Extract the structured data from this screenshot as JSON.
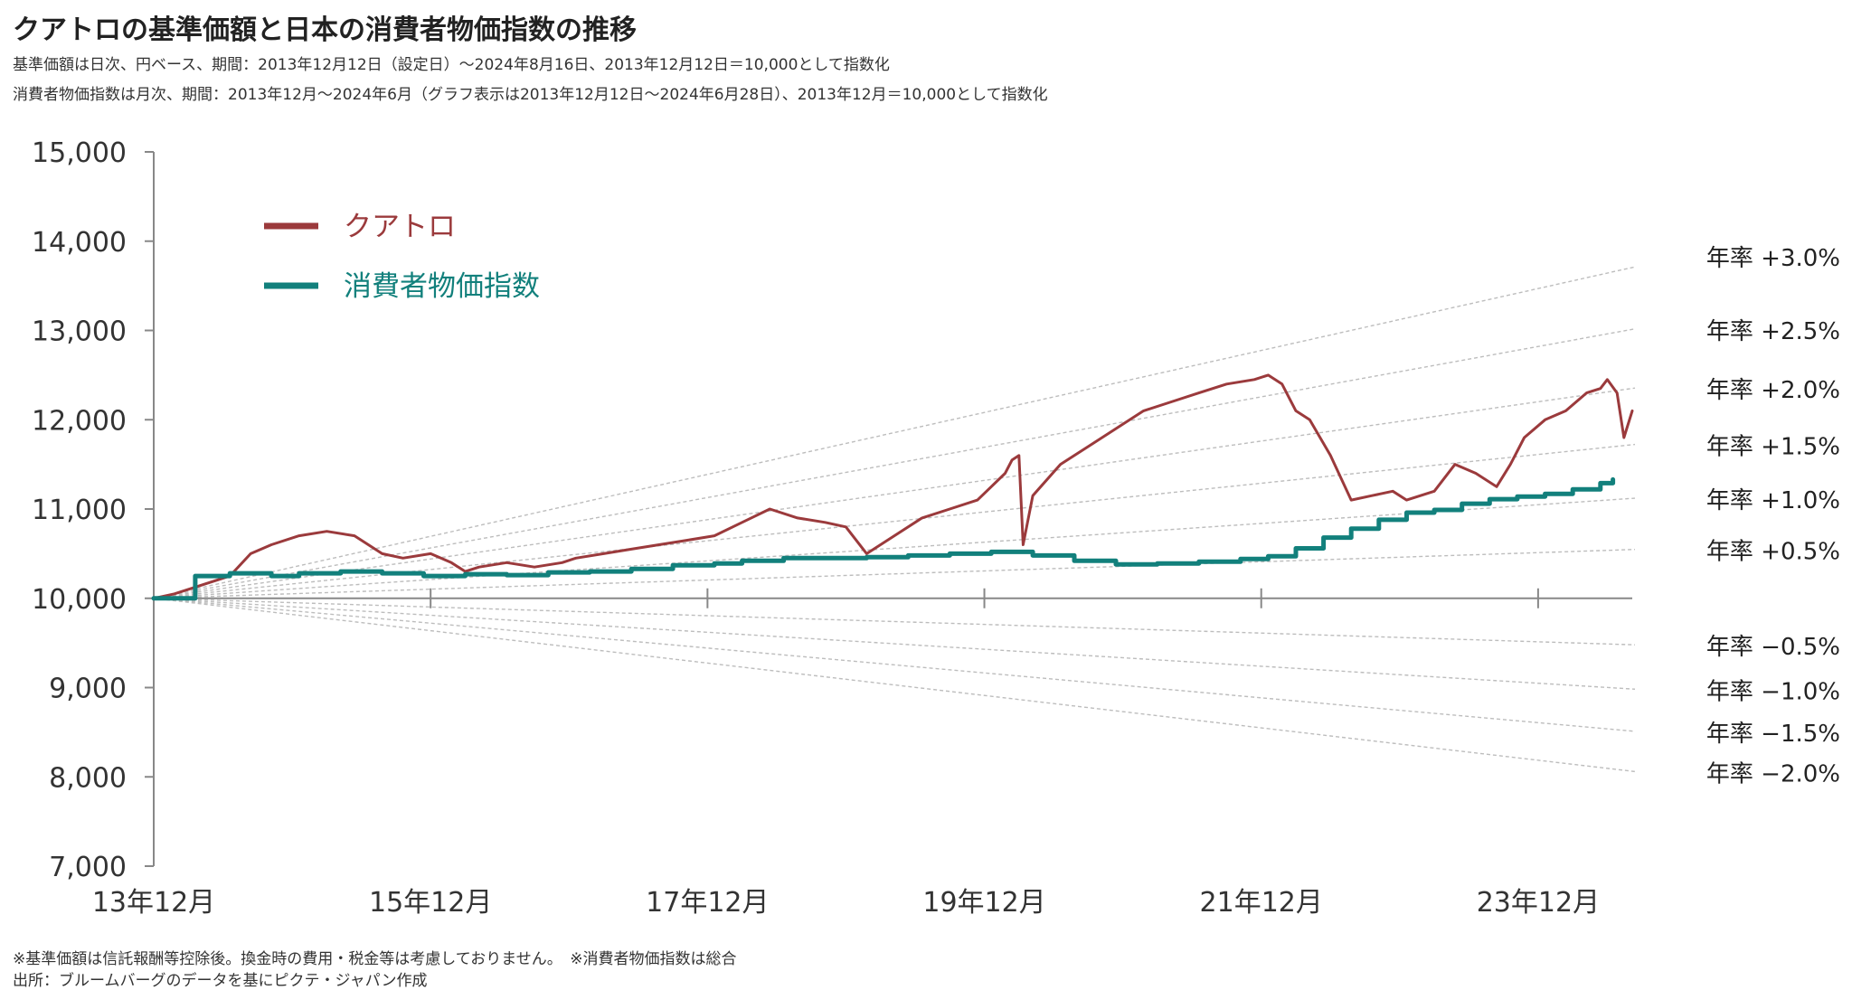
{
  "title": "クアトロの基準価額と日本の消費者物価指数の推移",
  "subtitle_lines": [
    "基準価額は日次、円ベース、期間：2013年12月12日（設定日）～2024年8月16日、2013年12月12日＝10,000として指数化",
    "消費者物価指数は月次、期間：2013年12月～2024年6月（グラフ表示は2013年12月12日～2024年6月28日）、2013年12月＝10,000として指数化"
  ],
  "footnotes": [
    "※基準価額は信託報酬等控除後。換金時の費用・税金等は考慮しておりません。　※消費者物価指数は総合",
    "出所：ブルームバーグのデータを基にピクテ・ジャパン作成"
  ],
  "chart_data": {
    "type": "line",
    "ylim": [
      7000,
      15000
    ],
    "xlim": [
      2013.95,
      2024.63
    ],
    "y_ticks": [
      {
        "value": 7000,
        "label": "7,000"
      },
      {
        "value": 8000,
        "label": "8,000"
      },
      {
        "value": 9000,
        "label": "9,000"
      },
      {
        "value": 10000,
        "label": "10,000"
      },
      {
        "value": 11000,
        "label": "11,000"
      },
      {
        "value": 12000,
        "label": "12,000"
      },
      {
        "value": 13000,
        "label": "13,000"
      },
      {
        "value": 14000,
        "label": "14,000"
      },
      {
        "value": 15000,
        "label": "15,000"
      }
    ],
    "x_ticks": [
      {
        "value": 2013.95,
        "label": "13年12月"
      },
      {
        "value": 2015.95,
        "label": "15年12月"
      },
      {
        "value": 2017.95,
        "label": "17年12月"
      },
      {
        "value": 2019.95,
        "label": "19年12月"
      },
      {
        "value": 2021.95,
        "label": "21年12月"
      },
      {
        "value": 2023.95,
        "label": "23年12月"
      }
    ],
    "legend": [
      {
        "name": "クアトロ",
        "color": "#9b3a3c"
      },
      {
        "name": "消費者物価指数",
        "color": "#12807c"
      }
    ],
    "legend_placement": "top-left",
    "grid": false,
    "reference_lines": [
      {
        "rate": 3.0,
        "label": "年率 +3.0%"
      },
      {
        "rate": 2.5,
        "label": "年率 +2.5%"
      },
      {
        "rate": 2.0,
        "label": "年率 +2.0%"
      },
      {
        "rate": 1.5,
        "label": "年率 +1.5%"
      },
      {
        "rate": 1.0,
        "label": "年率 +1.0%"
      },
      {
        "rate": 0.5,
        "label": "年率 +0.5%"
      },
      {
        "rate": -0.5,
        "label": "年率 −0.5%"
      },
      {
        "rate": -1.0,
        "label": "年率 −1.0%"
      },
      {
        "rate": -1.5,
        "label": "年率 −1.5%"
      },
      {
        "rate": -2.0,
        "label": "年率 −2.0%"
      }
    ],
    "reference_line_color": "#bdbdbd",
    "series": [
      {
        "name": "クアトロ",
        "color": "#9b3a3c",
        "x": [
          2013.95,
          2014.1,
          2014.3,
          2014.5,
          2014.65,
          2014.8,
          2015.0,
          2015.2,
          2015.4,
          2015.6,
          2015.75,
          2015.95,
          2016.1,
          2016.2,
          2016.3,
          2016.5,
          2016.7,
          2016.9,
          2017.0,
          2017.2,
          2017.4,
          2017.6,
          2017.8,
          2018.0,
          2018.2,
          2018.4,
          2018.6,
          2018.8,
          2018.95,
          2019.1,
          2019.3,
          2019.5,
          2019.7,
          2019.9,
          2020.0,
          2020.1,
          2020.15,
          2020.2,
          2020.23,
          2020.3,
          2020.5,
          2020.7,
          2020.9,
          2021.1,
          2021.3,
          2021.5,
          2021.7,
          2021.9,
          2022.0,
          2022.1,
          2022.2,
          2022.3,
          2022.45,
          2022.6,
          2022.75,
          2022.9,
          2023.0,
          2023.1,
          2023.2,
          2023.35,
          2023.5,
          2023.65,
          2023.75,
          2023.85,
          2024.0,
          2024.15,
          2024.3,
          2024.4,
          2024.45,
          2024.52,
          2024.57,
          2024.63
        ],
        "values": [
          10000,
          10050,
          10150,
          10250,
          10500,
          10600,
          10700,
          10750,
          10700,
          10500,
          10450,
          10500,
          10400,
          10300,
          10350,
          10400,
          10350,
          10400,
          10450,
          10500,
          10550,
          10600,
          10650,
          10700,
          10850,
          11000,
          10900,
          10850,
          10800,
          10500,
          10700,
          10900,
          11000,
          11100,
          11250,
          11400,
          11550,
          11600,
          10600,
          11150,
          11500,
          11700,
          11900,
          12100,
          12200,
          12300,
          12400,
          12450,
          12500,
          12400,
          12100,
          12000,
          11600,
          11100,
          11150,
          11200,
          11100,
          11150,
          11200,
          11500,
          11400,
          11250,
          11500,
          11800,
          12000,
          12100,
          12300,
          12350,
          12450,
          12300,
          11800,
          12100
        ]
      },
      {
        "name": "消費者物価指数",
        "color": "#12807c",
        "x": [
          2013.95,
          2014.2,
          2014.25,
          2014.5,
          2014.8,
          2015.0,
          2015.3,
          2015.6,
          2015.9,
          2016.2,
          2016.5,
          2016.8,
          2017.1,
          2017.4,
          2017.7,
          2018.0,
          2018.2,
          2018.5,
          2018.8,
          2019.1,
          2019.4,
          2019.7,
          2020.0,
          2020.3,
          2020.6,
          2020.9,
          2021.2,
          2021.5,
          2021.8,
          2022.0,
          2022.2,
          2022.4,
          2022.6,
          2022.8,
          2023.0,
          2023.2,
          2023.4,
          2023.6,
          2023.8,
          2024.0,
          2024.2,
          2024.4,
          2024.49
        ],
        "values": [
          10000,
          10000,
          10250,
          10280,
          10250,
          10280,
          10300,
          10280,
          10250,
          10270,
          10260,
          10290,
          10300,
          10330,
          10370,
          10390,
          10420,
          10450,
          10450,
          10460,
          10480,
          10500,
          10520,
          10480,
          10420,
          10380,
          10390,
          10410,
          10440,
          10470,
          10560,
          10680,
          10780,
          10880,
          10960,
          10990,
          11060,
          11110,
          11140,
          11170,
          11220,
          11290,
          11330
        ]
      }
    ]
  }
}
